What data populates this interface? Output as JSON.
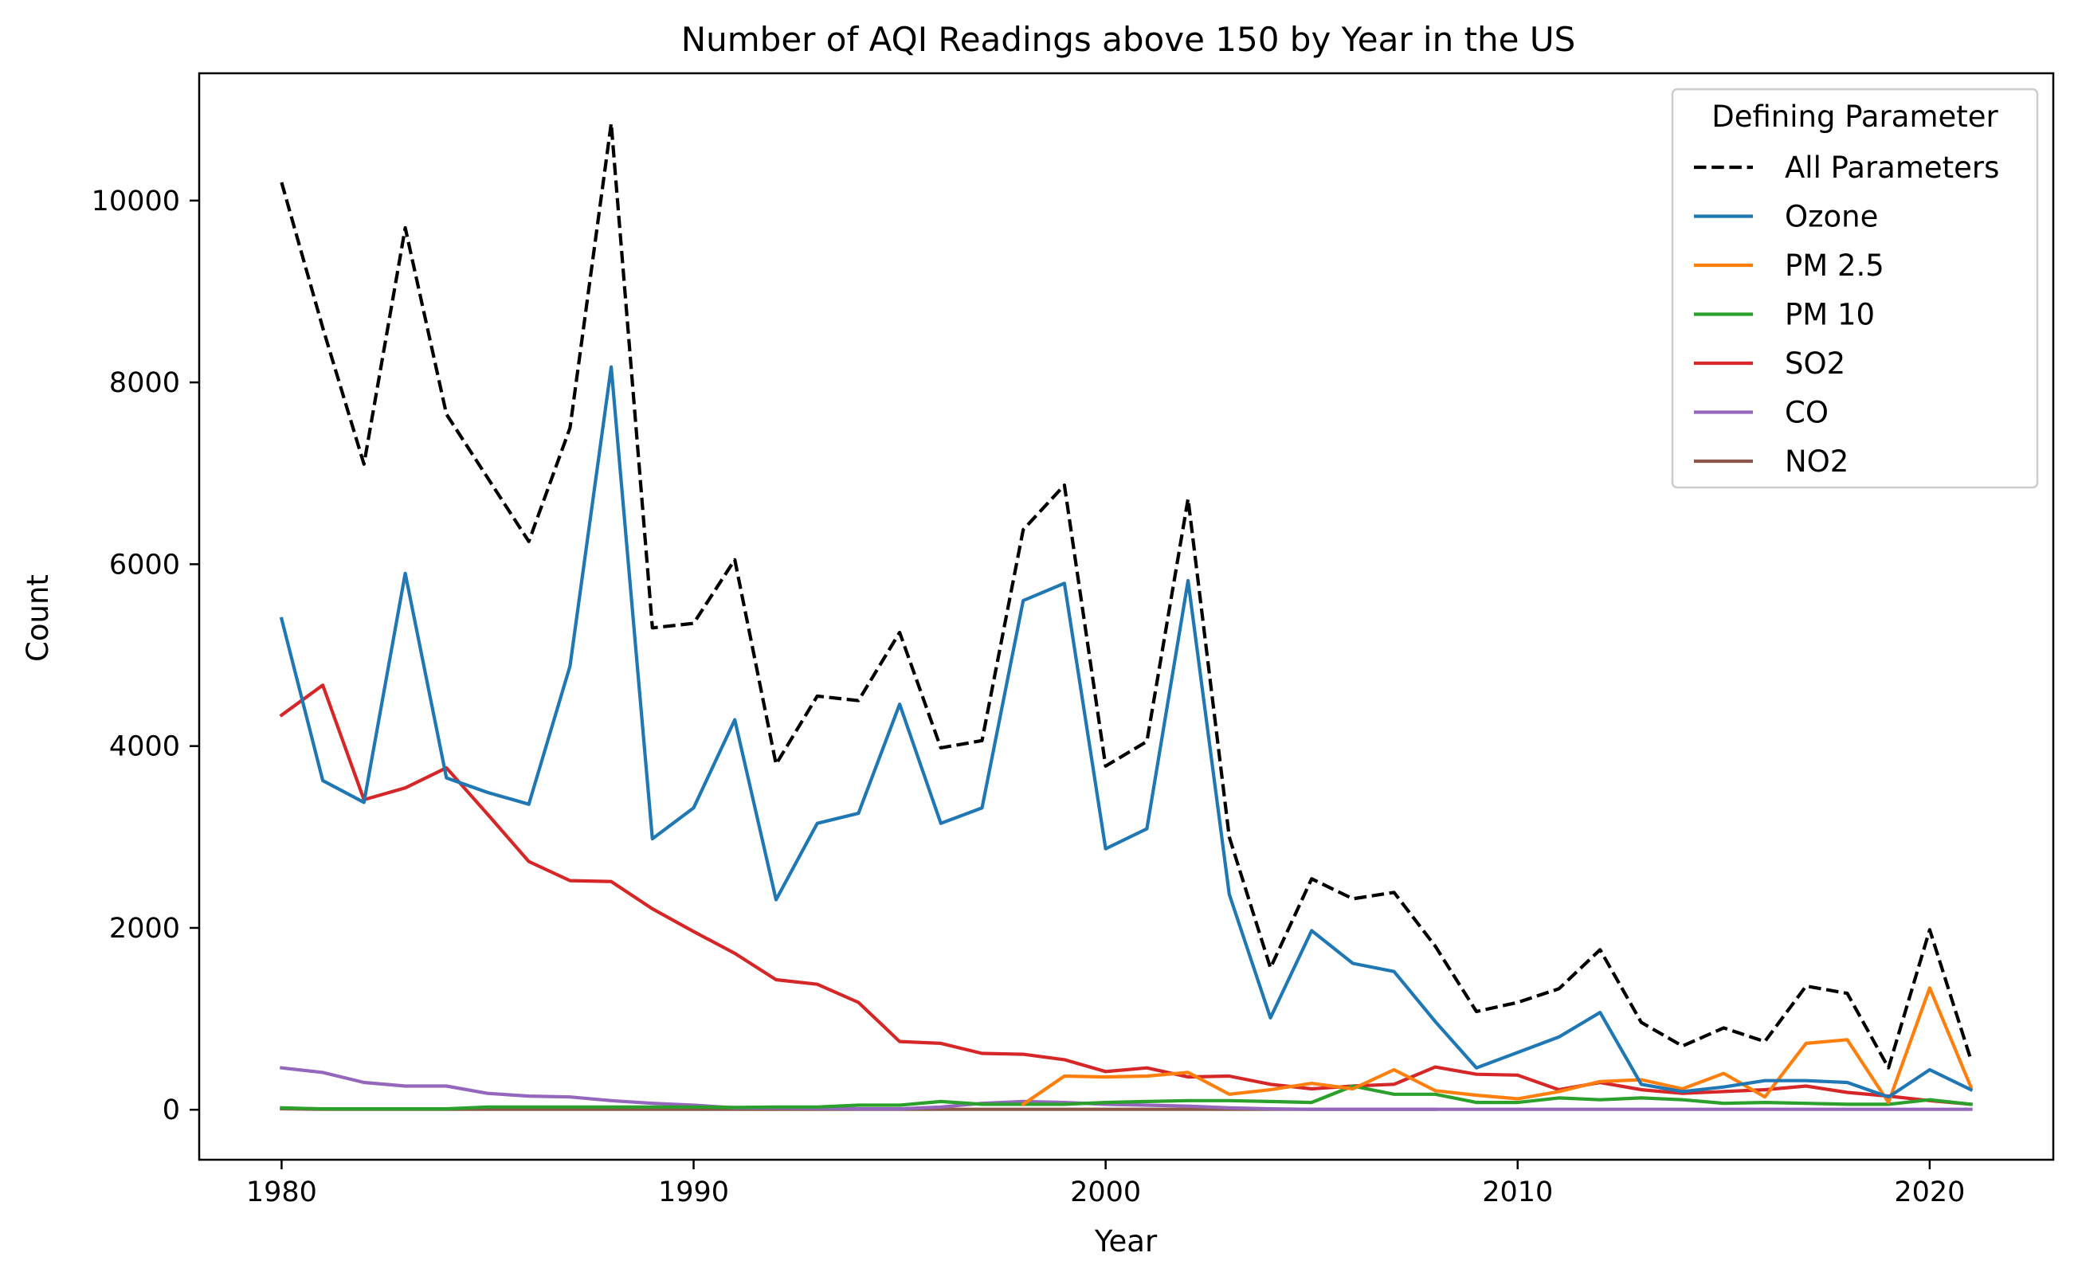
{
  "chart_data": {
    "type": "line",
    "title": "Number of AQI Readings above 150 by Year in the US",
    "xlabel": "Year",
    "ylabel": "Count",
    "xlim": [
      1978,
      2023
    ],
    "ylim": [
      -550,
      11400
    ],
    "xticks": [
      1980,
      1990,
      2000,
      2010,
      2020
    ],
    "yticks": [
      0,
      2000,
      4000,
      6000,
      8000,
      10000
    ],
    "grid": false,
    "legend": {
      "title": "Defining Parameter",
      "placement": "top-right"
    },
    "series": [
      {
        "name": "All Parameters",
        "color": "#000000",
        "style": "dashed",
        "points": [
          [
            1980,
            10200
          ],
          [
            1981,
            8600
          ],
          [
            1982,
            7100
          ],
          [
            1983,
            9700
          ],
          [
            1984,
            7650
          ],
          [
            1985,
            6950
          ],
          [
            1986,
            6250
          ],
          [
            1987,
            7500
          ],
          [
            1988,
            10850
          ],
          [
            1989,
            5300
          ],
          [
            1990,
            5350
          ],
          [
            1991,
            6050
          ],
          [
            1992,
            3800
          ],
          [
            1993,
            4550
          ],
          [
            1994,
            4500
          ],
          [
            1995,
            5250
          ],
          [
            1996,
            3980
          ],
          [
            1997,
            4060
          ],
          [
            1998,
            6380
          ],
          [
            1999,
            6870
          ],
          [
            2000,
            3780
          ],
          [
            2001,
            4050
          ],
          [
            2002,
            6720
          ],
          [
            2003,
            3000
          ],
          [
            2004,
            1560
          ],
          [
            2005,
            2540
          ],
          [
            2006,
            2320
          ],
          [
            2007,
            2390
          ],
          [
            2008,
            1800
          ],
          [
            2009,
            1080
          ],
          [
            2010,
            1180
          ],
          [
            2011,
            1330
          ],
          [
            2012,
            1760
          ],
          [
            2013,
            960
          ],
          [
            2014,
            700
          ],
          [
            2015,
            900
          ],
          [
            2016,
            750
          ],
          [
            2017,
            1360
          ],
          [
            2018,
            1280
          ],
          [
            2019,
            460
          ],
          [
            2020,
            1980
          ],
          [
            2021,
            550
          ]
        ]
      },
      {
        "name": "Ozone",
        "color": "#1f77b4",
        "style": "solid",
        "points": [
          [
            1980,
            5400
          ],
          [
            1981,
            3620
          ],
          [
            1982,
            3380
          ],
          [
            1983,
            5900
          ],
          [
            1984,
            3650
          ],
          [
            1985,
            3490
          ],
          [
            1986,
            3360
          ],
          [
            1987,
            4880
          ],
          [
            1988,
            8170
          ],
          [
            1989,
            2980
          ],
          [
            1990,
            3320
          ],
          [
            1991,
            4290
          ],
          [
            1992,
            2310
          ],
          [
            1993,
            3150
          ],
          [
            1994,
            3260
          ],
          [
            1995,
            4460
          ],
          [
            1996,
            3150
          ],
          [
            1997,
            3320
          ],
          [
            1998,
            5600
          ],
          [
            1999,
            5790
          ],
          [
            2000,
            2870
          ],
          [
            2001,
            3090
          ],
          [
            2002,
            5820
          ],
          [
            2003,
            2370
          ],
          [
            2004,
            1010
          ],
          [
            2005,
            1970
          ],
          [
            2006,
            1610
          ],
          [
            2007,
            1520
          ],
          [
            2008,
            970
          ],
          [
            2009,
            460
          ],
          [
            2010,
            630
          ],
          [
            2011,
            800
          ],
          [
            2012,
            1070
          ],
          [
            2013,
            280
          ],
          [
            2014,
            200
          ],
          [
            2015,
            250
          ],
          [
            2016,
            320
          ],
          [
            2017,
            320
          ],
          [
            2018,
            300
          ],
          [
            2019,
            140
          ],
          [
            2020,
            440
          ],
          [
            2021,
            220
          ]
        ]
      },
      {
        "name": "PM 2.5",
        "color": "#ff7f0e",
        "style": "solid",
        "points": [
          [
            1998,
            60
          ],
          [
            1999,
            370
          ],
          [
            2000,
            360
          ],
          [
            2001,
            370
          ],
          [
            2002,
            410
          ],
          [
            2003,
            170
          ],
          [
            2004,
            220
          ],
          [
            2005,
            290
          ],
          [
            2006,
            230
          ],
          [
            2007,
            440
          ],
          [
            2008,
            210
          ],
          [
            2009,
            160
          ],
          [
            2010,
            120
          ],
          [
            2011,
            200
          ],
          [
            2012,
            310
          ],
          [
            2013,
            330
          ],
          [
            2014,
            230
          ],
          [
            2015,
            400
          ],
          [
            2016,
            140
          ],
          [
            2017,
            730
          ],
          [
            2018,
            770
          ],
          [
            2019,
            80
          ],
          [
            2020,
            1340
          ],
          [
            2021,
            250
          ]
        ]
      },
      {
        "name": "PM 10",
        "color": "#2ca02c",
        "style": "solid",
        "points": [
          [
            1980,
            20
          ],
          [
            1981,
            10
          ],
          [
            1982,
            10
          ],
          [
            1983,
            10
          ],
          [
            1984,
            10
          ],
          [
            1985,
            30
          ],
          [
            1986,
            30
          ],
          [
            1987,
            30
          ],
          [
            1988,
            30
          ],
          [
            1989,
            30
          ],
          [
            1990,
            30
          ],
          [
            1991,
            25
          ],
          [
            1992,
            30
          ],
          [
            1993,
            30
          ],
          [
            1994,
            50
          ],
          [
            1995,
            50
          ],
          [
            1996,
            90
          ],
          [
            1997,
            60
          ],
          [
            1998,
            60
          ],
          [
            1999,
            60
          ],
          [
            2000,
            80
          ],
          [
            2001,
            90
          ],
          [
            2002,
            100
          ],
          [
            2003,
            100
          ],
          [
            2004,
            90
          ],
          [
            2005,
            80
          ],
          [
            2006,
            260
          ],
          [
            2007,
            170
          ],
          [
            2008,
            170
          ],
          [
            2009,
            80
          ],
          [
            2010,
            80
          ],
          [
            2011,
            130
          ],
          [
            2012,
            110
          ],
          [
            2013,
            130
          ],
          [
            2014,
            110
          ],
          [
            2015,
            70
          ],
          [
            2016,
            80
          ],
          [
            2017,
            70
          ],
          [
            2018,
            60
          ],
          [
            2019,
            60
          ],
          [
            2020,
            110
          ],
          [
            2021,
            60
          ]
        ]
      },
      {
        "name": "SO2",
        "color": "#d62728",
        "style": "solid",
        "points": [
          [
            1980,
            4340
          ],
          [
            1981,
            4670
          ],
          [
            1982,
            3410
          ],
          [
            1983,
            3540
          ],
          [
            1984,
            3760
          ],
          [
            1985,
            3250
          ],
          [
            1986,
            2730
          ],
          [
            1987,
            2520
          ],
          [
            1988,
            2510
          ],
          [
            1989,
            2210
          ],
          [
            1990,
            1960
          ],
          [
            1991,
            1720
          ],
          [
            1992,
            1430
          ],
          [
            1993,
            1380
          ],
          [
            1994,
            1180
          ],
          [
            1995,
            750
          ],
          [
            1996,
            730
          ],
          [
            1997,
            620
          ],
          [
            1998,
            610
          ],
          [
            1999,
            550
          ],
          [
            2000,
            420
          ],
          [
            2001,
            460
          ],
          [
            2002,
            360
          ],
          [
            2003,
            370
          ],
          [
            2004,
            280
          ],
          [
            2005,
            230
          ],
          [
            2006,
            260
          ],
          [
            2007,
            280
          ],
          [
            2008,
            470
          ],
          [
            2009,
            390
          ],
          [
            2010,
            380
          ],
          [
            2011,
            220
          ],
          [
            2012,
            300
          ],
          [
            2013,
            220
          ],
          [
            2014,
            180
          ],
          [
            2015,
            200
          ],
          [
            2016,
            220
          ],
          [
            2017,
            260
          ],
          [
            2018,
            190
          ],
          [
            2019,
            150
          ],
          [
            2020,
            100
          ],
          [
            2021,
            60
          ]
        ]
      },
      {
        "name": "CO",
        "color": "#9467bd",
        "style": "solid",
        "points": [
          [
            1980,
            460
          ],
          [
            1981,
            410
          ],
          [
            1982,
            300
          ],
          [
            1983,
            260
          ],
          [
            1984,
            260
          ],
          [
            1985,
            180
          ],
          [
            1986,
            150
          ],
          [
            1987,
            140
          ],
          [
            1988,
            100
          ],
          [
            1989,
            70
          ],
          [
            1990,
            50
          ],
          [
            1991,
            20
          ],
          [
            1992,
            20
          ],
          [
            1993,
            15
          ],
          [
            1994,
            10
          ],
          [
            1995,
            10
          ],
          [
            1996,
            30
          ],
          [
            1997,
            70
          ],
          [
            1998,
            90
          ],
          [
            1999,
            80
          ],
          [
            2000,
            60
          ],
          [
            2001,
            50
          ],
          [
            2002,
            40
          ],
          [
            2003,
            20
          ],
          [
            2004,
            10
          ],
          [
            2005,
            5
          ],
          [
            2006,
            5
          ],
          [
            2007,
            5
          ],
          [
            2008,
            5
          ],
          [
            2009,
            5
          ],
          [
            2010,
            5
          ],
          [
            2011,
            5
          ],
          [
            2012,
            5
          ],
          [
            2013,
            5
          ],
          [
            2014,
            5
          ],
          [
            2015,
            5
          ],
          [
            2016,
            5
          ],
          [
            2017,
            5
          ],
          [
            2018,
            5
          ],
          [
            2019,
            5
          ],
          [
            2020,
            5
          ],
          [
            2021,
            5
          ]
        ]
      },
      {
        "name": "NO2",
        "color": "#8c564b",
        "style": "solid",
        "points": [
          [
            1980,
            10
          ],
          [
            1981,
            5
          ],
          [
            1982,
            5
          ],
          [
            1983,
            5
          ],
          [
            1984,
            5
          ],
          [
            1985,
            5
          ],
          [
            1986,
            5
          ],
          [
            1987,
            5
          ],
          [
            1988,
            5
          ],
          [
            1989,
            5
          ],
          [
            1990,
            5
          ],
          [
            1991,
            5
          ],
          [
            1992,
            5
          ],
          [
            1993,
            5
          ],
          [
            1994,
            5
          ],
          [
            1995,
            5
          ],
          [
            1996,
            5
          ],
          [
            1997,
            5
          ],
          [
            1998,
            5
          ],
          [
            1999,
            5
          ],
          [
            2000,
            5
          ],
          [
            2001,
            5
          ],
          [
            2002,
            5
          ],
          [
            2003,
            5
          ],
          [
            2004,
            5
          ],
          [
            2005,
            5
          ],
          [
            2006,
            5
          ],
          [
            2007,
            5
          ],
          [
            2008,
            5
          ]
        ]
      }
    ]
  }
}
